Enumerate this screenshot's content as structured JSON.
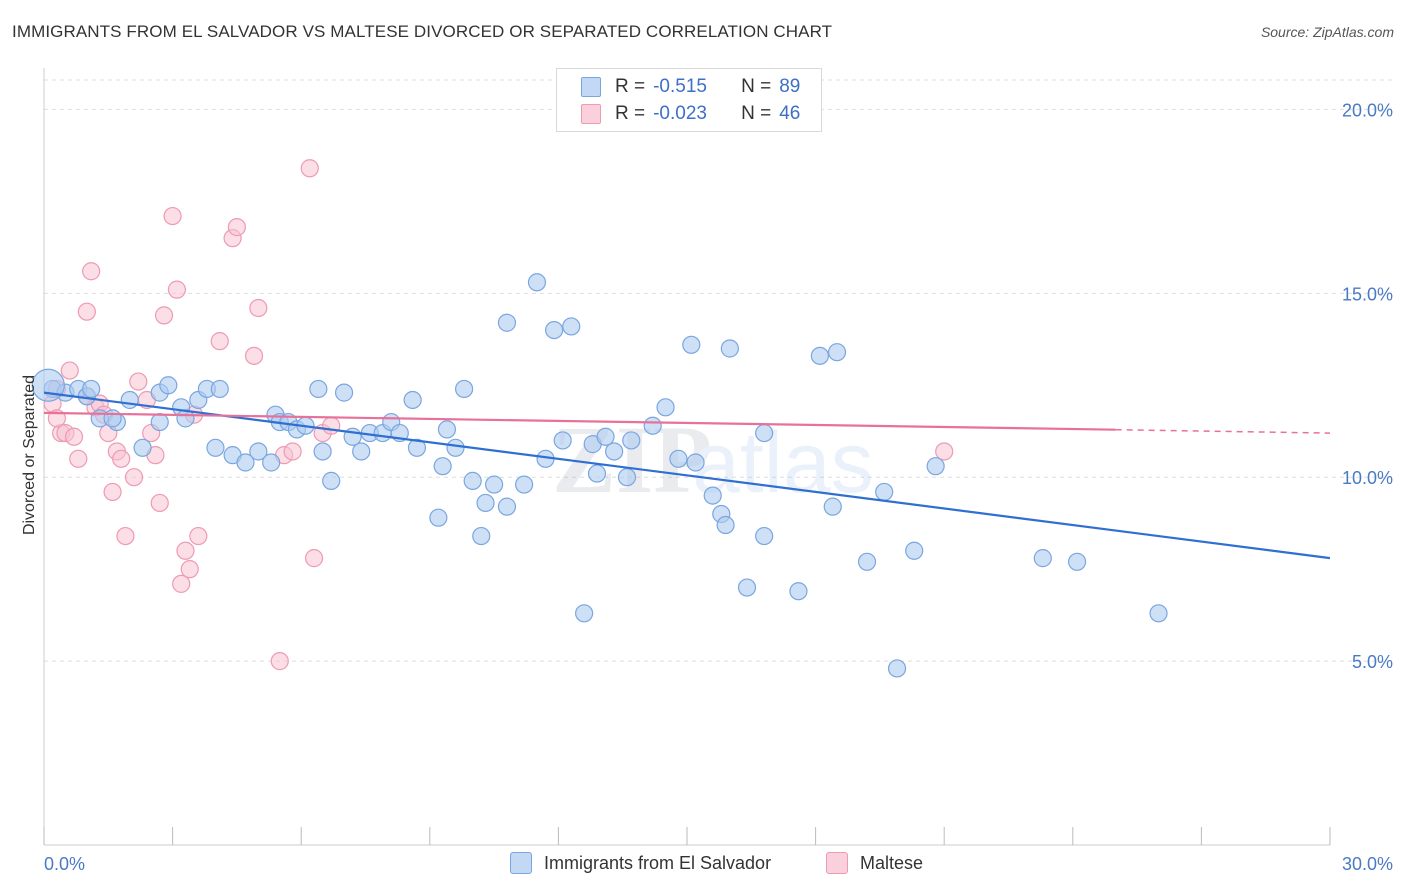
{
  "header": {
    "title": "IMMIGRANTS FROM EL SALVADOR VS MALTESE DIVORCED OR SEPARATED CORRELATION CHART",
    "source": "Source: ZipAtlas.com"
  },
  "stats_legend": {
    "rows": [
      {
        "r_label": "R =",
        "r_value": "-0.515",
        "n_label": "N =",
        "n_value": "89"
      },
      {
        "r_label": "R =",
        "r_value": "-0.023",
        "n_label": "N =",
        "n_value": "46"
      }
    ]
  },
  "colors": {
    "blue_fill": "#aecbf0",
    "blue_stroke": "#7aa6e0",
    "blue_line": "#2f6fd1",
    "pink_fill": "#f7c2d2",
    "pink_stroke": "#ee9ab4",
    "pink_line": "#e8719a",
    "tick_text": "#4a7ac6",
    "grid": "#dddddd"
  },
  "watermark": {
    "text_bold": "ZIP",
    "text_light": "atlas"
  },
  "chart_data": {
    "type": "scatter",
    "title": "IMMIGRANTS FROM EL SALVADOR VS MALTESE DIVORCED OR SEPARATED CORRELATION CHART",
    "xlabel": "",
    "ylabel": "Divorced or Separated",
    "xlim": [
      0,
      30
    ],
    "ylim": [
      0,
      20.8
    ],
    "x_tick_labels": {
      "left": "0.0%",
      "right": "30.0%"
    },
    "y_ticks": [
      {
        "value": 5,
        "label": "5.0%"
      },
      {
        "value": 10,
        "label": "10.0%"
      },
      {
        "value": 15,
        "label": "15.0%"
      },
      {
        "value": 20,
        "label": "20.0%"
      }
    ],
    "grid": true,
    "legend_position": "bottom-center",
    "series": [
      {
        "name": "Immigrants from El Salvador",
        "color": "#aecbf0",
        "trend": {
          "x": [
            0,
            30
          ],
          "y": [
            12.3,
            7.8
          ],
          "dashed_from": null
        },
        "points": [
          [
            0.2,
            12.4
          ],
          [
            0.5,
            12.3
          ],
          [
            0.8,
            12.4
          ],
          [
            1.0,
            12.2
          ],
          [
            1.1,
            12.4
          ],
          [
            1.3,
            11.6
          ],
          [
            1.7,
            11.5
          ],
          [
            2.0,
            12.1
          ],
          [
            1.6,
            11.6
          ],
          [
            2.3,
            10.8
          ],
          [
            2.7,
            11.5
          ],
          [
            2.7,
            12.3
          ],
          [
            2.9,
            12.5
          ],
          [
            3.2,
            11.9
          ],
          [
            3.3,
            11.6
          ],
          [
            3.6,
            12.1
          ],
          [
            3.8,
            12.4
          ],
          [
            4.1,
            12.4
          ],
          [
            4.0,
            10.8
          ],
          [
            4.4,
            10.6
          ],
          [
            4.7,
            10.4
          ],
          [
            5.0,
            10.7
          ],
          [
            5.3,
            10.4
          ],
          [
            5.4,
            11.7
          ],
          [
            5.5,
            11.5
          ],
          [
            5.7,
            11.5
          ],
          [
            5.9,
            11.3
          ],
          [
            6.1,
            11.4
          ],
          [
            6.4,
            12.4
          ],
          [
            6.5,
            10.7
          ],
          [
            6.7,
            9.9
          ],
          [
            7.0,
            12.3
          ],
          [
            7.2,
            11.1
          ],
          [
            7.4,
            10.7
          ],
          [
            7.6,
            11.2
          ],
          [
            7.9,
            11.2
          ],
          [
            8.1,
            11.5
          ],
          [
            8.3,
            11.2
          ],
          [
            8.6,
            12.1
          ],
          [
            8.7,
            10.8
          ],
          [
            9.2,
            8.9
          ],
          [
            9.4,
            11.3
          ],
          [
            9.3,
            10.3
          ],
          [
            9.6,
            10.8
          ],
          [
            9.8,
            12.4
          ],
          [
            10.0,
            9.9
          ],
          [
            10.2,
            8.4
          ],
          [
            10.3,
            9.3
          ],
          [
            10.8,
            9.2
          ],
          [
            10.5,
            9.8
          ],
          [
            10.8,
            14.2
          ],
          [
            11.2,
            9.8
          ],
          [
            11.5,
            15.3
          ],
          [
            11.7,
            10.5
          ],
          [
            11.9,
            14.0
          ],
          [
            12.1,
            11.0
          ],
          [
            12.3,
            14.1
          ],
          [
            12.6,
            6.3
          ],
          [
            12.8,
            10.9
          ],
          [
            12.9,
            10.1
          ],
          [
            13.1,
            11.1
          ],
          [
            13.3,
            10.7
          ],
          [
            13.6,
            10.0
          ],
          [
            13.7,
            11.0
          ],
          [
            14.2,
            11.4
          ],
          [
            14.5,
            11.9
          ],
          [
            14.8,
            10.5
          ],
          [
            15.1,
            13.6
          ],
          [
            15.2,
            10.4
          ],
          [
            15.6,
            9.5
          ],
          [
            15.8,
            9.0
          ],
          [
            15.9,
            8.7
          ],
          [
            16.0,
            13.5
          ],
          [
            16.4,
            7.0
          ],
          [
            16.8,
            8.4
          ],
          [
            17.6,
            6.9
          ],
          [
            18.1,
            13.3
          ],
          [
            18.4,
            9.2
          ],
          [
            18.5,
            13.4
          ],
          [
            19.2,
            7.7
          ],
          [
            19.6,
            9.6
          ],
          [
            19.9,
            4.8
          ],
          [
            20.3,
            8.0
          ],
          [
            20.8,
            10.3
          ],
          [
            23.3,
            7.8
          ],
          [
            24.1,
            7.7
          ],
          [
            26.0,
            6.3
          ],
          [
            16.8,
            11.2
          ],
          [
            0.1,
            12.5
          ]
        ]
      },
      {
        "name": "Maltese",
        "color": "#f7c2d2",
        "trend": {
          "x": [
            0,
            30
          ],
          "y": [
            11.75,
            11.2
          ],
          "dashed_from": 25.0
        },
        "points": [
          [
            0.2,
            12.0
          ],
          [
            0.3,
            12.4
          ],
          [
            0.4,
            11.2
          ],
          [
            0.5,
            11.2
          ],
          [
            0.6,
            12.9
          ],
          [
            0.7,
            11.1
          ],
          [
            0.8,
            10.5
          ],
          [
            1.0,
            12.2
          ],
          [
            1.0,
            14.5
          ],
          [
            1.1,
            15.6
          ],
          [
            1.2,
            11.9
          ],
          [
            1.3,
            12.0
          ],
          [
            1.4,
            11.7
          ],
          [
            1.5,
            11.2
          ],
          [
            1.6,
            9.6
          ],
          [
            1.7,
            10.7
          ],
          [
            1.8,
            10.5
          ],
          [
            1.9,
            8.4
          ],
          [
            2.1,
            10.0
          ],
          [
            2.2,
            12.6
          ],
          [
            2.4,
            12.1
          ],
          [
            2.5,
            11.2
          ],
          [
            2.6,
            10.6
          ],
          [
            2.7,
            9.3
          ],
          [
            2.8,
            14.4
          ],
          [
            3.0,
            17.1
          ],
          [
            3.1,
            15.1
          ],
          [
            3.2,
            7.1
          ],
          [
            3.3,
            8.0
          ],
          [
            3.4,
            7.5
          ],
          [
            3.5,
            11.7
          ],
          [
            3.6,
            8.4
          ],
          [
            4.1,
            13.7
          ],
          [
            4.4,
            16.5
          ],
          [
            4.5,
            16.8
          ],
          [
            4.9,
            13.3
          ],
          [
            5.0,
            14.6
          ],
          [
            5.5,
            5.0
          ],
          [
            5.6,
            10.6
          ],
          [
            5.8,
            10.7
          ],
          [
            6.2,
            18.4
          ],
          [
            6.3,
            7.8
          ],
          [
            6.5,
            11.2
          ],
          [
            6.7,
            11.4
          ],
          [
            21.0,
            10.7
          ],
          [
            0.3,
            11.6
          ]
        ]
      }
    ]
  },
  "bottom_legend": {
    "items": [
      {
        "label": "Immigrants from El Salvador"
      },
      {
        "label": "Maltese"
      }
    ]
  }
}
